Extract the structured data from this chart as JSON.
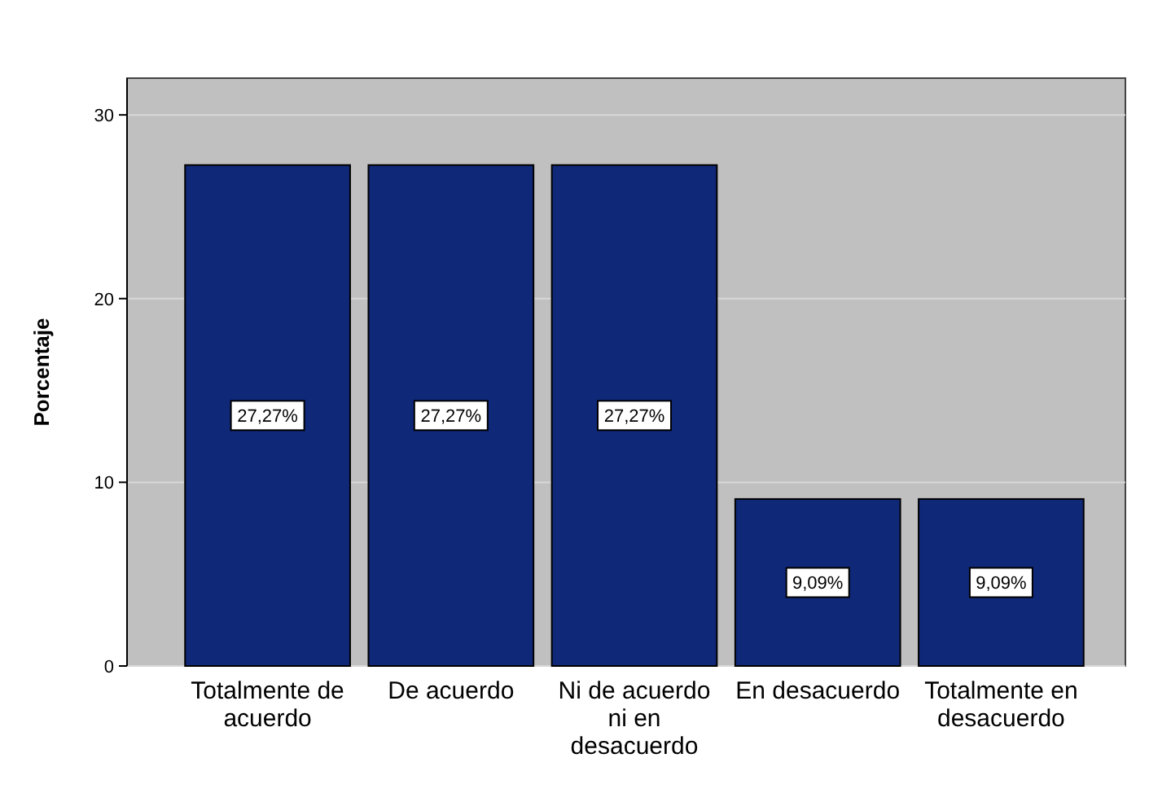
{
  "chart_data": {
    "type": "bar",
    "ylabel": "Porcentaje",
    "categories": [
      "Totalmente de acuerdo",
      "De acuerdo",
      "Ni de acuerdo ni en desacuerdo",
      "En desacuerdo",
      "Totalmente en desacuerdo"
    ],
    "values": [
      27.27,
      27.27,
      27.27,
      9.09,
      9.09
    ],
    "value_labels": [
      "27,27%",
      "27,27%",
      "27,27%",
      "9,09%",
      "9,09%"
    ],
    "color": "#0f2878",
    "ylim": [
      0,
      32
    ],
    "yticks": [
      0,
      10,
      20,
      30
    ],
    "grid": "y"
  }
}
